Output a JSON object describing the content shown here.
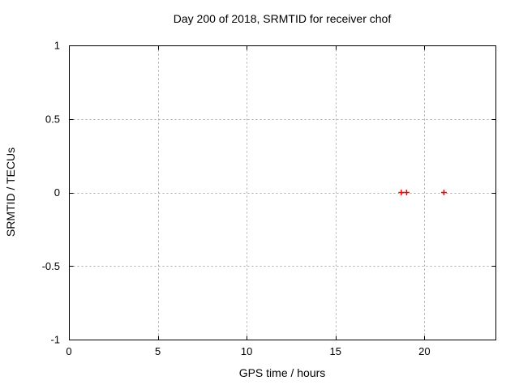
{
  "chart_data": {
    "type": "scatter",
    "title": "Day 200 of 2018, SRMTID for receiver chof",
    "xlabel": "GPS time / hours",
    "ylabel": "SRMTID / TECUs",
    "xlim": [
      0,
      24
    ],
    "ylim": [
      -1,
      1
    ],
    "xticks": {
      "values": [
        0,
        5,
        10,
        15,
        20
      ],
      "labels": [
        "0",
        "5",
        "10",
        "15",
        "20"
      ]
    },
    "yticks": {
      "values": [
        -1,
        -0.5,
        0,
        0.5,
        1
      ],
      "labels": [
        "-1",
        "-0.5",
        "0",
        "0.5",
        "1"
      ]
    },
    "grid": true,
    "legend": "none",
    "colors": {
      "background": "#ffffff",
      "axis": "#000000",
      "grid": "#a8a8a8",
      "marker": "#ff0000"
    },
    "series": [
      {
        "marker": "plus",
        "color": "#ff0000",
        "points": [
          [
            18.7,
            0.0
          ],
          [
            19.0,
            0.0
          ],
          [
            21.1,
            0.0
          ]
        ]
      }
    ]
  }
}
